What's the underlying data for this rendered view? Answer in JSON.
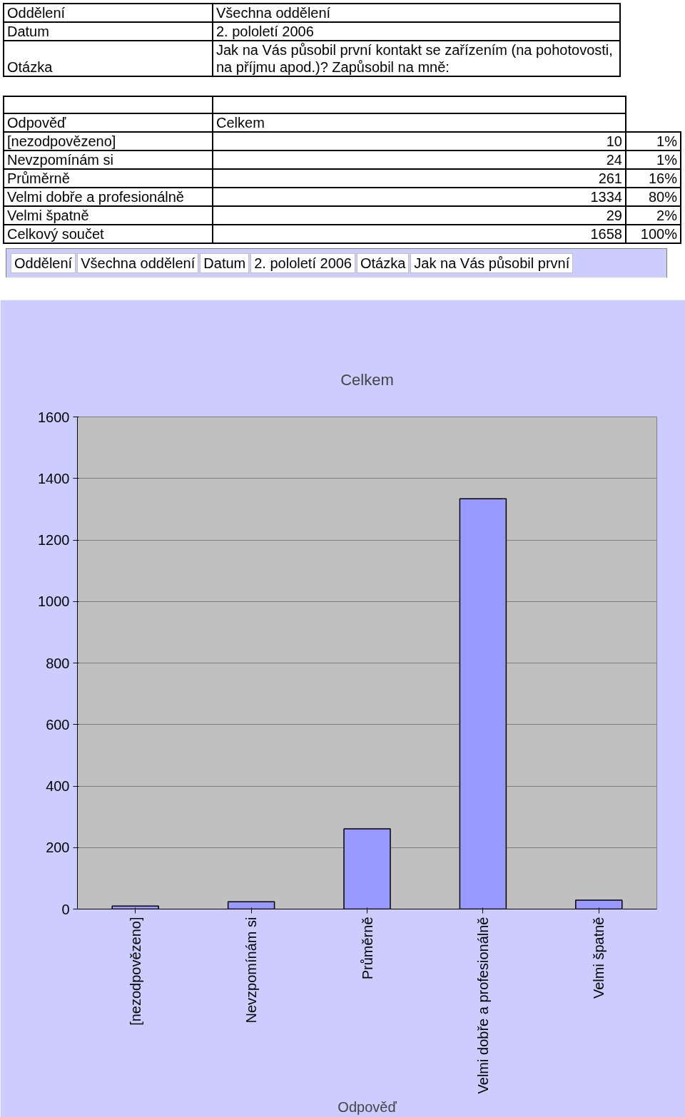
{
  "chart_data": {
    "type": "bar",
    "title": "Celkem",
    "xlabel": "Odpověď",
    "categories": [
      "[nezodpovězeno]",
      "Nevzpomínám si",
      "Průměrně",
      "Velmi dobře a profesionálně",
      "Velmi špatně"
    ],
    "values": [
      10,
      24,
      261,
      1334,
      29
    ],
    "color": "#9999ff",
    "ylim": [
      0,
      1600
    ],
    "yticks": [
      0,
      200,
      400,
      600,
      800,
      1000,
      1200,
      1400,
      1600
    ],
    "grid": "y",
    "annotations": [
      "Oddělení",
      "Všechna oddělení",
      "Datum",
      "2. pololetí 2006",
      "Otázka",
      "Jak na Vás působil první kontakt se zařízením (na pohotovosti, na příjmu apod.)? Zapůsobil na mně:",
      "1%",
      "1%",
      "16%",
      "80%",
      "2%",
      "Celkový součet",
      "1658",
      "100%",
      "Jak na Vás působil první",
      "10",
      "24",
      "261",
      "1334",
      "29"
    ]
  }
}
